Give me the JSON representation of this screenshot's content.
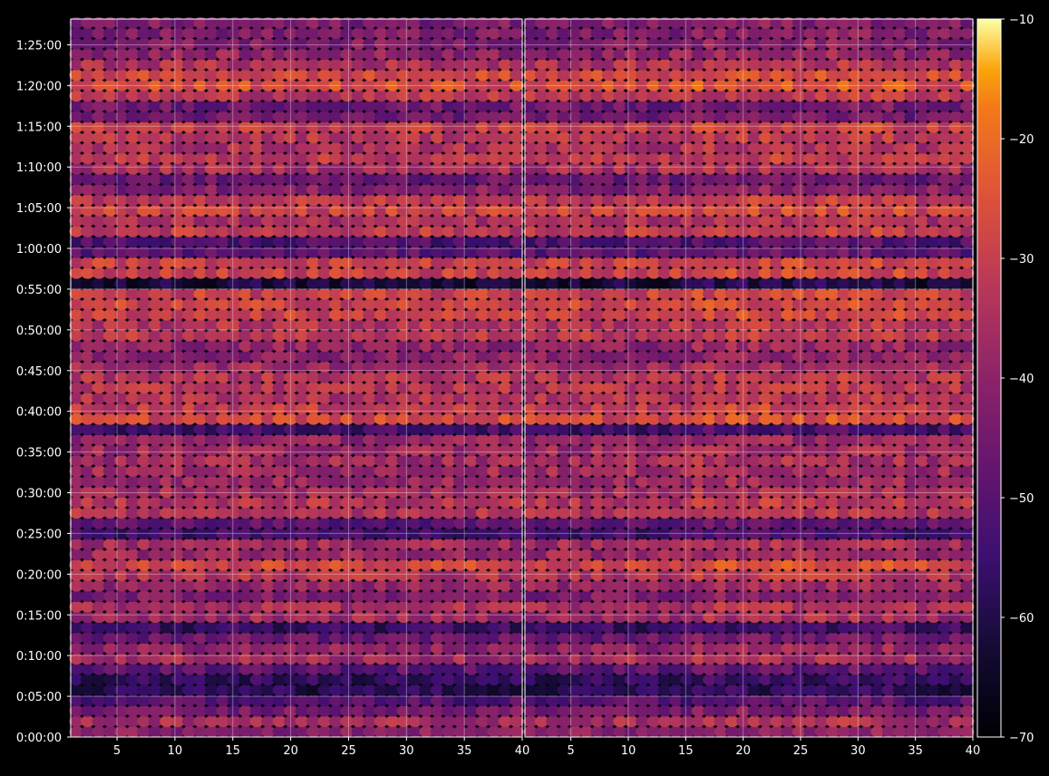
{
  "chart_data": {
    "type": "heatmap",
    "title": "",
    "xlabel": "",
    "ylabel": "",
    "grid": true,
    "colormap": "inferno",
    "background": "#000000",
    "foreground": "#ffffff",
    "panels": [
      {
        "x_ticks": [
          5,
          10,
          15,
          20,
          25,
          30,
          35,
          40
        ],
        "x_range": [
          1,
          40
        ],
        "y_tick_labels": [
          "0:00:00",
          "0:05:00",
          "0:10:00",
          "0:15:00",
          "0:20:00",
          "0:25:00",
          "0:30:00",
          "0:35:00",
          "0:40:00",
          "0:45:00",
          "0:50:00",
          "0:55:00",
          "1:00:00",
          "1:05:00",
          "1:10:00",
          "1:15:00",
          "1:20:00",
          "1:25:00"
        ]
      },
      {
        "x_ticks": [
          5,
          10,
          15,
          20,
          25,
          30,
          35,
          40
        ],
        "x_range": [
          1,
          40
        ]
      }
    ],
    "y_range_seconds": [
      0,
      5290
    ],
    "y_tick_seconds": [
      0,
      300,
      600,
      900,
      1200,
      1500,
      1800,
      2100,
      2400,
      2700,
      3000,
      3300,
      3600,
      3900,
      4200,
      4500,
      4800,
      5100
    ],
    "colorbar": {
      "ticks": [
        -70,
        -60,
        -50,
        -40,
        -30,
        -20,
        -10
      ],
      "range": [
        -70,
        -10
      ]
    },
    "row_level_profile": [
      {
        "t": 100,
        "level": -38
      },
      {
        "t": 220,
        "level": -47
      },
      {
        "t": 420,
        "level": -56
      },
      {
        "t": 520,
        "level": -52
      },
      {
        "t": 610,
        "level": -38
      },
      {
        "t": 700,
        "level": -45
      },
      {
        "t": 820,
        "level": -58
      },
      {
        "t": 900,
        "level": -37
      },
      {
        "t": 1080,
        "level": -40
      },
      {
        "t": 1210,
        "level": -32
      },
      {
        "t": 1370,
        "level": -36
      },
      {
        "t": 1530,
        "level": -50
      },
      {
        "t": 1700,
        "level": -33
      },
      {
        "t": 1860,
        "level": -37
      },
      {
        "t": 2000,
        "level": -34
      },
      {
        "t": 2130,
        "level": -40
      },
      {
        "t": 2260,
        "level": -53
      },
      {
        "t": 2420,
        "level": -31
      },
      {
        "t": 2570,
        "level": -32
      },
      {
        "t": 2720,
        "level": -36
      },
      {
        "t": 2870,
        "level": -38
      },
      {
        "t": 3030,
        "level": -33
      },
      {
        "t": 3180,
        "level": -33
      },
      {
        "t": 3350,
        "level": -62
      },
      {
        "t": 3440,
        "level": -32
      },
      {
        "t": 3620,
        "level": -50
      },
      {
        "t": 3810,
        "level": -32
      },
      {
        "t": 3930,
        "level": -32
      },
      {
        "t": 4110,
        "level": -44
      },
      {
        "t": 4230,
        "level": -33
      },
      {
        "t": 4410,
        "level": -32
      },
      {
        "t": 4620,
        "level": -42
      },
      {
        "t": 4800,
        "level": -30
      },
      {
        "t": 4970,
        "level": -36
      },
      {
        "t": 5190,
        "level": -44
      }
    ]
  }
}
